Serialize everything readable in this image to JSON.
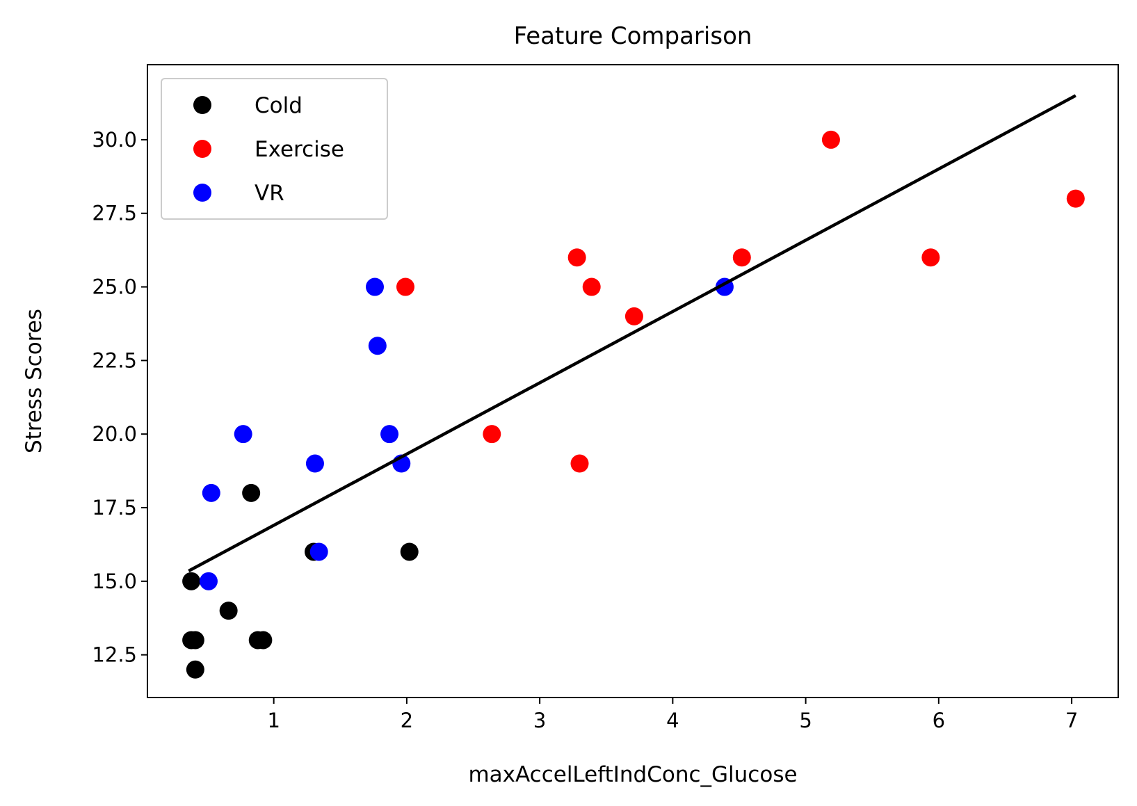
{
  "chart_data": {
    "type": "scatter",
    "title": "Feature Comparison",
    "xlabel": "maxAccelLeftIndConc_Glucose",
    "ylabel": "Stress Scores",
    "xlim": [
      0.05,
      7.35
    ],
    "ylim": [
      11.05,
      32.55
    ],
    "xticks": [
      1,
      2,
      3,
      4,
      5,
      6,
      7
    ],
    "yticks": [
      12.5,
      15.0,
      17.5,
      20.0,
      22.5,
      25.0,
      27.5,
      30.0
    ],
    "xtick_labels": [
      "1",
      "2",
      "3",
      "4",
      "5",
      "6",
      "7"
    ],
    "ytick_labels": [
      "12.5",
      "15.0",
      "17.5",
      "20.0",
      "22.5",
      "25.0",
      "27.5",
      "30.0"
    ],
    "legend_position": "upper-left",
    "grid": false,
    "series": [
      {
        "name": "Cold",
        "color": "#000000",
        "points": [
          {
            "x": 0.38,
            "y": 15
          },
          {
            "x": 0.38,
            "y": 13
          },
          {
            "x": 0.41,
            "y": 13
          },
          {
            "x": 0.41,
            "y": 12
          },
          {
            "x": 0.66,
            "y": 14
          },
          {
            "x": 0.83,
            "y": 18
          },
          {
            "x": 0.88,
            "y": 13
          },
          {
            "x": 0.92,
            "y": 13
          },
          {
            "x": 1.3,
            "y": 16
          },
          {
            "x": 2.02,
            "y": 16
          }
        ]
      },
      {
        "name": "Exercise",
        "color": "#ff0000",
        "points": [
          {
            "x": 1.99,
            "y": 25
          },
          {
            "x": 2.64,
            "y": 20
          },
          {
            "x": 3.28,
            "y": 26
          },
          {
            "x": 3.3,
            "y": 19
          },
          {
            "x": 3.39,
            "y": 25
          },
          {
            "x": 3.71,
            "y": 24
          },
          {
            "x": 4.52,
            "y": 26
          },
          {
            "x": 5.19,
            "y": 30
          },
          {
            "x": 5.94,
            "y": 26
          },
          {
            "x": 7.03,
            "y": 28
          }
        ]
      },
      {
        "name": "VR",
        "color": "#0000ff",
        "points": [
          {
            "x": 0.51,
            "y": 15
          },
          {
            "x": 0.53,
            "y": 18
          },
          {
            "x": 0.77,
            "y": 20
          },
          {
            "x": 1.31,
            "y": 19
          },
          {
            "x": 1.34,
            "y": 16
          },
          {
            "x": 1.76,
            "y": 25
          },
          {
            "x": 1.78,
            "y": 23
          },
          {
            "x": 1.87,
            "y": 20
          },
          {
            "x": 1.96,
            "y": 19
          },
          {
            "x": 4.39,
            "y": 25
          }
        ]
      }
    ],
    "fit_line": {
      "color": "#000000",
      "points": [
        {
          "x": 0.36,
          "y": 15.35
        },
        {
          "x": 7.03,
          "y": 31.5
        }
      ]
    }
  }
}
